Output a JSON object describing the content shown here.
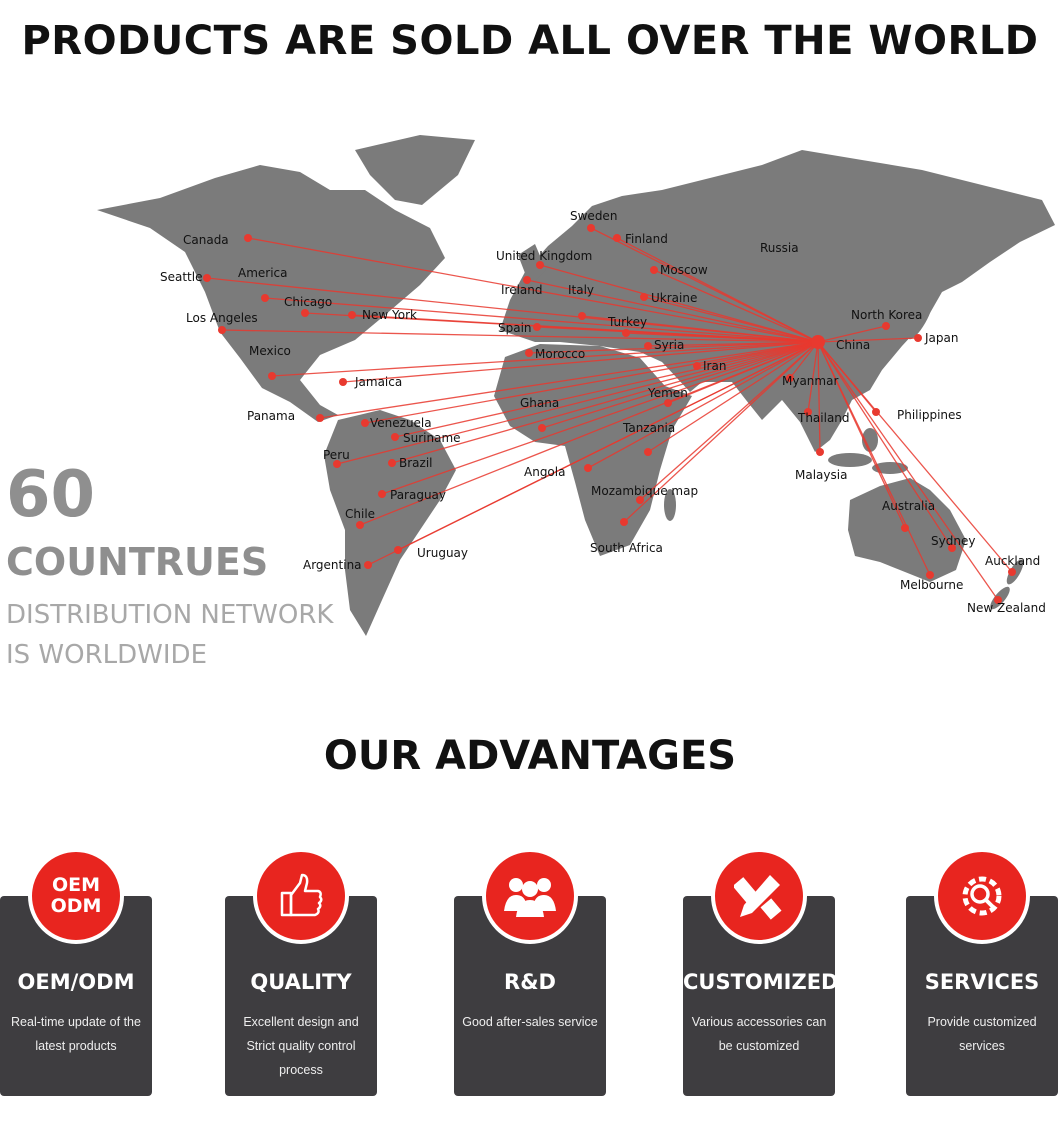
{
  "header": {
    "title": "PRODUCTS ARE SOLD ALL OVER THE WORLD"
  },
  "stats": {
    "number": "60",
    "unit": "COUNTRUES",
    "line1": "DISTRIBUTION NETWORK",
    "line2": "IS WORLDWIDE"
  },
  "map": {
    "land_color": "#7b7b7b",
    "route_color": "#e8392f",
    "hub": "China",
    "labels": [
      "Canada",
      "Seattle",
      "America",
      "Chicago",
      "New York",
      "Los Angeles",
      "Mexico",
      "Jamaica",
      "Panama",
      "Venezuela",
      "Suriname",
      "Peru",
      "Brazil",
      "Paraguay",
      "Chile",
      "Argentina",
      "Uruguay",
      "Sweden",
      "Finland",
      "United Kingdom",
      "Ireland",
      "Italy",
      "Moscow",
      "Ukraine",
      "Spain",
      "Turkey",
      "Syria",
      "Morocco",
      "Iran",
      "Yemen",
      "Ghana",
      "Tanzania",
      "Angola",
      "Mozambique map",
      "South Africa",
      "Russia",
      "China",
      "North Korea",
      "Japan",
      "Myanmar",
      "Thailand",
      "Philippines",
      "Malaysia",
      "Australia",
      "Sydney",
      "Melbourne",
      "Auckland",
      "New Zealand"
    ]
  },
  "advantages": {
    "title": "OUR ADVANTAGES",
    "accent": "#e8251f",
    "cards": [
      {
        "icon": "oem-odm-text-icon",
        "badge_line1": "OEM",
        "badge_line2": "ODM",
        "title": "OEM/ODM",
        "desc": "Real-time update of the latest products"
      },
      {
        "icon": "thumbs-up-icon",
        "title": "QUALITY",
        "desc": "Excellent design and Strict quality control process"
      },
      {
        "icon": "team-icon",
        "title": "R&D",
        "desc": "Good after-sales service"
      },
      {
        "icon": "pencil-ruler-icon",
        "title": "CUSTOMIZED",
        "desc": "Various accessories can be customized"
      },
      {
        "icon": "gear-search-icon",
        "title": "SERVICES",
        "desc": "Provide customized services"
      }
    ]
  }
}
